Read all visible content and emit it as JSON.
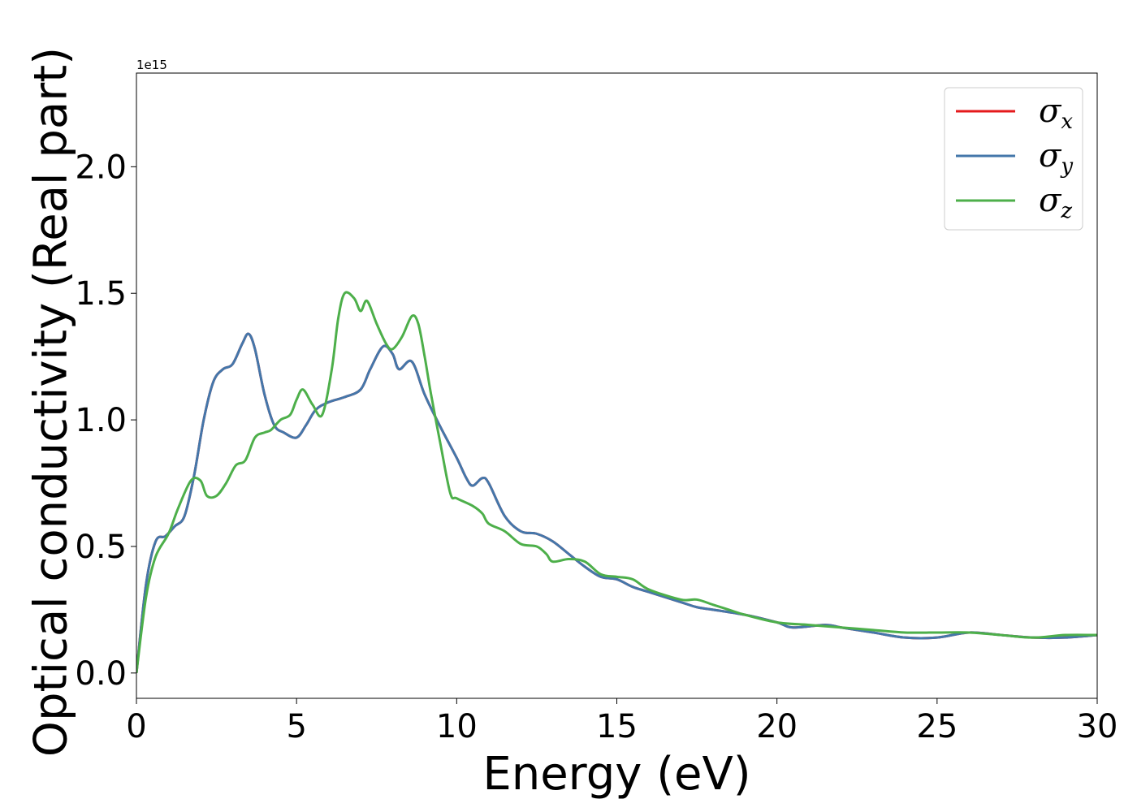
{
  "chart_data": {
    "type": "line",
    "title": "",
    "xlabel": "Energy (eV)",
    "ylabel": "Optical conductivity (Real part)",
    "y_offset_label": "1e15",
    "xlim": [
      0,
      30
    ],
    "ylim": [
      -0.1,
      2.37
    ],
    "xticks": [
      0,
      5,
      10,
      15,
      20,
      25,
      30
    ],
    "xtick_labels": [
      "0",
      "5",
      "10",
      "15",
      "20",
      "25",
      "30"
    ],
    "yticks": [
      0.0,
      0.5,
      1.0,
      1.5,
      2.0
    ],
    "ytick_labels": [
      "0.0",
      "0.5",
      "1.0",
      "1.5",
      "2.0"
    ],
    "grid": false,
    "legend_position": "top-right",
    "series": [
      {
        "name": "σ",
        "subscript": "x",
        "color": "#e41a1c",
        "x": [
          0,
          0.3,
          0.6,
          0.9,
          1.2,
          1.5,
          1.8,
          2.1,
          2.4,
          2.7,
          3.0,
          3.3,
          3.5,
          3.7,
          4.0,
          4.3,
          4.6,
          5.0,
          5.3,
          5.6,
          6.0,
          6.5,
          7.0,
          7.3,
          7.7,
          8.0,
          8.2,
          8.6,
          9.0,
          9.5,
          10.0,
          10.3,
          10.5,
          10.8,
          11.0,
          11.5,
          12.0,
          12.5,
          13.0,
          13.5,
          14.0,
          14.5,
          15.0,
          15.5,
          16.0,
          17.0,
          17.5,
          18.0,
          19.0,
          20.0,
          20.5,
          21.5,
          22.0,
          23.0,
          24.0,
          25.0,
          26.0,
          27.0,
          28.0,
          29.0,
          30.0
        ],
        "y": [
          0.0,
          0.35,
          0.52,
          0.54,
          0.58,
          0.62,
          0.78,
          1.0,
          1.15,
          1.2,
          1.22,
          1.3,
          1.34,
          1.28,
          1.1,
          0.98,
          0.95,
          0.93,
          0.98,
          1.04,
          1.07,
          1.09,
          1.12,
          1.2,
          1.29,
          1.26,
          1.2,
          1.23,
          1.1,
          0.97,
          0.85,
          0.77,
          0.74,
          0.77,
          0.75,
          0.62,
          0.56,
          0.55,
          0.52,
          0.47,
          0.42,
          0.38,
          0.37,
          0.34,
          0.32,
          0.28,
          0.26,
          0.25,
          0.23,
          0.2,
          0.18,
          0.19,
          0.18,
          0.16,
          0.14,
          0.14,
          0.16,
          0.15,
          0.14,
          0.14,
          0.15
        ]
      },
      {
        "name": "σ",
        "subscript": "y",
        "color": "#4477aa",
        "x": [
          0,
          0.3,
          0.6,
          0.9,
          1.2,
          1.5,
          1.8,
          2.1,
          2.4,
          2.7,
          3.0,
          3.3,
          3.5,
          3.7,
          4.0,
          4.3,
          4.6,
          5.0,
          5.3,
          5.6,
          6.0,
          6.5,
          7.0,
          7.3,
          7.7,
          8.0,
          8.2,
          8.6,
          9.0,
          9.5,
          10.0,
          10.3,
          10.5,
          10.8,
          11.0,
          11.5,
          12.0,
          12.5,
          13.0,
          13.5,
          14.0,
          14.5,
          15.0,
          15.5,
          16.0,
          17.0,
          17.5,
          18.0,
          19.0,
          20.0,
          20.5,
          21.5,
          22.0,
          23.0,
          24.0,
          25.0,
          26.0,
          27.0,
          28.0,
          29.0,
          30.0
        ],
        "y": [
          0.0,
          0.35,
          0.52,
          0.54,
          0.58,
          0.62,
          0.78,
          1.0,
          1.15,
          1.2,
          1.22,
          1.3,
          1.34,
          1.28,
          1.1,
          0.98,
          0.95,
          0.93,
          0.98,
          1.04,
          1.07,
          1.09,
          1.12,
          1.2,
          1.29,
          1.26,
          1.2,
          1.23,
          1.1,
          0.97,
          0.85,
          0.77,
          0.74,
          0.77,
          0.75,
          0.62,
          0.56,
          0.55,
          0.52,
          0.47,
          0.42,
          0.38,
          0.37,
          0.34,
          0.32,
          0.28,
          0.26,
          0.25,
          0.23,
          0.2,
          0.18,
          0.19,
          0.18,
          0.16,
          0.14,
          0.14,
          0.16,
          0.15,
          0.14,
          0.14,
          0.15
        ]
      },
      {
        "name": "σ",
        "subscript": "z",
        "color": "#4daf4a",
        "x": [
          0,
          0.3,
          0.6,
          1.0,
          1.3,
          1.7,
          2.0,
          2.2,
          2.5,
          2.8,
          3.1,
          3.4,
          3.7,
          4.0,
          4.2,
          4.5,
          4.8,
          5.0,
          5.2,
          5.5,
          5.8,
          6.1,
          6.3,
          6.5,
          6.8,
          7.0,
          7.2,
          7.5,
          7.8,
          8.0,
          8.3,
          8.6,
          8.8,
          9.0,
          9.2,
          9.5,
          9.8,
          10.0,
          10.5,
          10.8,
          11.0,
          11.5,
          12.0,
          12.5,
          12.8,
          13.0,
          13.5,
          14.0,
          14.5,
          15.0,
          15.5,
          16.0,
          17.0,
          17.5,
          18.0,
          18.5,
          19.0,
          20.0,
          21.0,
          22.0,
          23.0,
          24.0,
          25.0,
          26.0,
          27.0,
          28.0,
          29.0,
          30.0
        ],
        "y": [
          0.0,
          0.3,
          0.46,
          0.55,
          0.65,
          0.76,
          0.76,
          0.7,
          0.7,
          0.75,
          0.82,
          0.84,
          0.93,
          0.95,
          0.96,
          1.0,
          1.02,
          1.08,
          1.12,
          1.06,
          1.02,
          1.2,
          1.4,
          1.5,
          1.48,
          1.43,
          1.47,
          1.38,
          1.3,
          1.28,
          1.33,
          1.41,
          1.38,
          1.25,
          1.1,
          0.9,
          0.71,
          0.69,
          0.66,
          0.63,
          0.59,
          0.56,
          0.51,
          0.5,
          0.47,
          0.44,
          0.45,
          0.44,
          0.39,
          0.38,
          0.37,
          0.33,
          0.29,
          0.29,
          0.27,
          0.25,
          0.23,
          0.2,
          0.19,
          0.18,
          0.17,
          0.16,
          0.16,
          0.16,
          0.15,
          0.14,
          0.15,
          0.15
        ]
      }
    ]
  }
}
